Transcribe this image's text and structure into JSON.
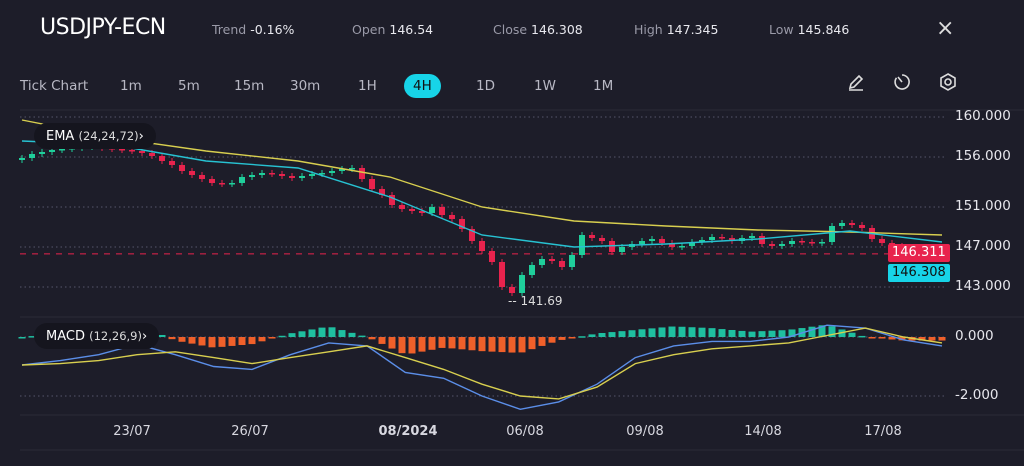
{
  "header": {
    "symbol": "USDJPY-ECN",
    "trend_label": "Trend",
    "trend": "-0.16%",
    "open_label": "Open",
    "open": "146.54",
    "close_label": "Close",
    "close": "146.308",
    "high_label": "High",
    "high": "147.345",
    "low_label": "Low",
    "low": "145.846",
    "close_icon": "×"
  },
  "timeframes": [
    "Tick Chart",
    "1m",
    "5m",
    "15m",
    "30m",
    "1H",
    "4H",
    "1D",
    "1W",
    "1M"
  ],
  "active_timeframe": "4H",
  "tools": {
    "draw": "pencil-icon",
    "timer": "timer-icon",
    "settings": "hexagon-settings-icon"
  },
  "indicators": {
    "ema_name": "EMA",
    "ema_params": "(24,24,72)",
    "macd_name": "MACD",
    "macd_params": "(12,26,9)",
    "chevron": "›"
  },
  "colors": {
    "up": "#1fcf9b",
    "down": "#e8234d",
    "ema_fast": "#27c2d2",
    "ema_slow": "#d8cf4f",
    "macd": "#5b8ee8",
    "signal": "#d8cf4f",
    "hist_pos": "#1fbfa0",
    "hist_neg": "#f0602a",
    "accent": "#17d4e8"
  },
  "price_badges": {
    "bid": "146.311",
    "last": "146.308"
  },
  "chart_data": [
    {
      "type": "candlestick",
      "ylim": [
        141,
        161
      ],
      "yticks": [
        "160.000",
        "156.000",
        "151.000",
        "147.000",
        "143.000"
      ],
      "ytick_values": [
        160,
        156,
        151,
        147,
        143
      ],
      "xticks": [
        "23/07",
        "26/07",
        "08/2024",
        "06/08",
        "09/08",
        "14/08",
        "17/08"
      ],
      "low_annotation": "141.69",
      "close": [
        155.9,
        156.3,
        156.5,
        156.7,
        156.8,
        156.9,
        157.0,
        157.0,
        156.9,
        156.8,
        156.7,
        156.6,
        156.4,
        156.1,
        155.6,
        155.2,
        154.6,
        154.2,
        153.8,
        153.4,
        153.3,
        153.4,
        154.0,
        154.2,
        154.4,
        154.3,
        154.1,
        153.9,
        154.1,
        154.3,
        154.4,
        154.6,
        154.8,
        154.9,
        153.8,
        152.8,
        152.2,
        151.2,
        150.8,
        150.6,
        150.4,
        151.0,
        150.2,
        149.8,
        148.8,
        147.6,
        146.6,
        145.5,
        143.0,
        142.4,
        144.2,
        145.2,
        145.8,
        145.6,
        145.0,
        146.2,
        148.2,
        147.9,
        147.6,
        146.5,
        147.0,
        147.3,
        147.6,
        147.8,
        147.4,
        147.0,
        147.1,
        147.5,
        147.7,
        148.0,
        147.9,
        147.6,
        147.9,
        148.1,
        147.3,
        147.1,
        147.3,
        147.6,
        147.5,
        147.4,
        147.5,
        149.1,
        149.4,
        149.2,
        148.9,
        147.8,
        147.4,
        147.1,
        146.0,
        146.3,
        146.6,
        146.5,
        146.31
      ],
      "ema_fast": [
        157.6,
        157.2,
        155.6,
        154.9,
        152.0,
        148.2,
        147.0,
        147.3,
        147.8,
        148.6,
        147.5
      ],
      "ema_slow": [
        159.7,
        157.9,
        156.6,
        155.6,
        154.0,
        151.0,
        149.6,
        149.1,
        148.7,
        148.5,
        148.2
      ]
    },
    {
      "type": "line",
      "ylim": [
        -2.7,
        0.8
      ],
      "yticks": [
        "0.000",
        "-2.000"
      ],
      "ytick_values": [
        0,
        -2
      ],
      "macd": [
        -0.95,
        -0.8,
        -0.6,
        -0.25,
        -0.6,
        -1.0,
        -1.1,
        -0.6,
        -0.2,
        -0.3,
        -1.2,
        -1.4,
        -2.0,
        -2.45,
        -2.2,
        -1.6,
        -0.7,
        -0.3,
        -0.15,
        -0.15,
        0.0,
        0.4,
        0.3,
        -0.1,
        -0.3
      ],
      "signal": [
        -0.95,
        -0.9,
        -0.8,
        -0.6,
        -0.5,
        -0.7,
        -0.9,
        -0.7,
        -0.5,
        -0.3,
        -0.7,
        -1.1,
        -1.6,
        -2.0,
        -2.1,
        -1.7,
        -0.9,
        -0.6,
        -0.4,
        -0.3,
        -0.2,
        0.05,
        0.3,
        0.0,
        -0.2
      ]
    }
  ]
}
